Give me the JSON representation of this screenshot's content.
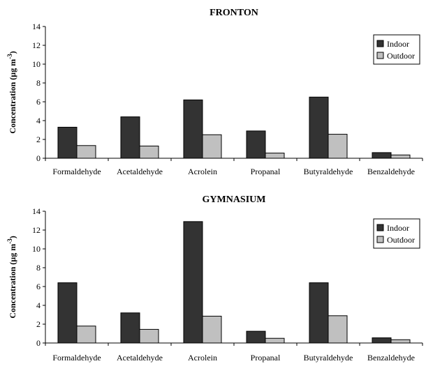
{
  "chart_data": [
    {
      "type": "bar",
      "title": "FRONTON",
      "xlabel": "",
      "ylabel": "Concentration (µg m⁻³)",
      "ylabel_parts": {
        "main": "Concentration (",
        "unit": "µg m",
        "exp": "-3",
        "close": ")"
      },
      "ylim": [
        0,
        14
      ],
      "yticks": [
        0,
        2,
        4,
        6,
        8,
        10,
        12,
        14
      ],
      "grid": false,
      "legend": "top-right",
      "categories": [
        "Formaldehyde",
        "Acetaldehyde",
        "Acrolein",
        "Propanal",
        "Butyraldehyde",
        "Benzaldehyde"
      ],
      "series": [
        {
          "name": "Indoor",
          "color": "#333333",
          "values": [
            3.3,
            4.4,
            6.2,
            2.9,
            6.5,
            0.6
          ]
        },
        {
          "name": "Outdoor",
          "color": "#c0c0c0",
          "values": [
            1.35,
            1.3,
            2.5,
            0.55,
            2.55,
            0.35
          ]
        }
      ]
    },
    {
      "type": "bar",
      "title": "GYMNASIUM",
      "xlabel": "",
      "ylabel": "Concentration (µg m⁻³)",
      "ylabel_parts": {
        "main": "Concentration (",
        "unit": "µg m",
        "exp": "-3",
        "close": ")"
      },
      "ylim": [
        0,
        14
      ],
      "yticks": [
        0,
        2,
        4,
        6,
        8,
        10,
        12,
        14
      ],
      "grid": false,
      "legend": "top-right",
      "categories": [
        "Formaldehyde",
        "Acetaldehyde",
        "Acrolein",
        "Propanal",
        "Butyraldehyde",
        "Benzaldehyde"
      ],
      "series": [
        {
          "name": "Indoor",
          "color": "#333333",
          "values": [
            6.4,
            3.2,
            12.9,
            1.25,
            6.4,
            0.55
          ]
        },
        {
          "name": "Outdoor",
          "color": "#c0c0c0",
          "values": [
            1.8,
            1.45,
            2.85,
            0.5,
            2.9,
            0.35
          ]
        }
      ]
    }
  ]
}
